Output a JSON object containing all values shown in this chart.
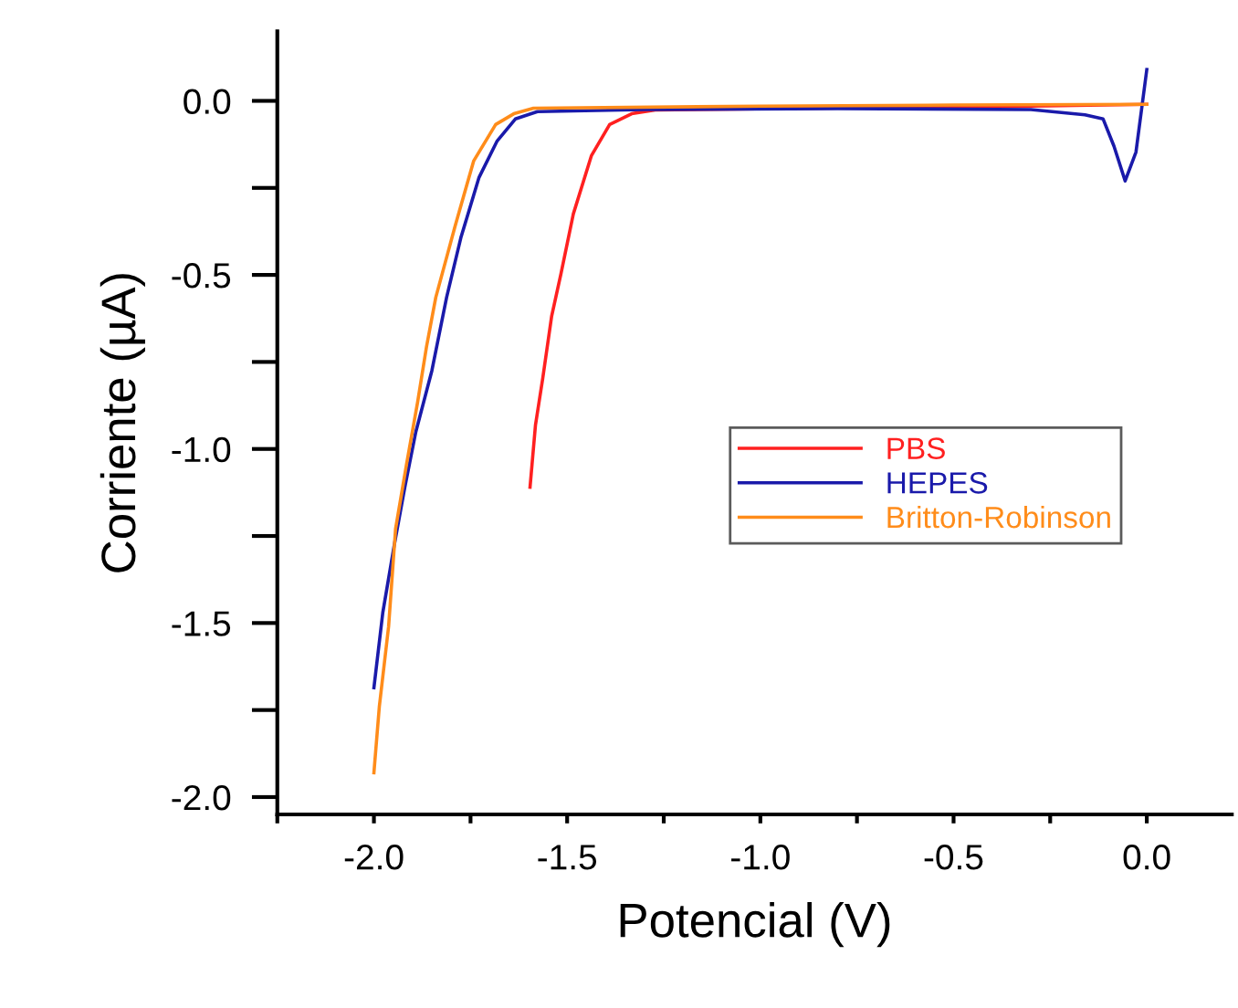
{
  "chart_data": {
    "type": "line",
    "xlabel": "Potencial (V)",
    "ylabel": "Corriente (µA)",
    "xlim": [
      -2.25,
      0.22
    ],
    "ylim": [
      -2.05,
      0.2
    ],
    "xticks": [
      {
        "value": -2.25,
        "label": null
      },
      {
        "value": -2,
        "label": "-2.0"
      },
      {
        "value": -1.75,
        "label": null
      },
      -1.5,
      {
        "value": -1.25,
        "label": null
      },
      {
        "value": -1,
        "label": "-1.0"
      },
      {
        "value": -0.75,
        "label": null
      },
      -0.5,
      {
        "value": -0.25,
        "label": null
      },
      {
        "value": 0,
        "label": "0.0"
      }
    ],
    "yticks": [
      {
        "value": -2,
        "label": "-2.0"
      },
      {
        "value": -1.75,
        "label": null
      },
      -1.5,
      {
        "value": -1.25,
        "label": null
      },
      {
        "value": -1,
        "label": "-1.0"
      },
      {
        "value": -0.75,
        "label": null
      },
      -0.5,
      {
        "value": -0.25,
        "label": null
      },
      {
        "value": 0,
        "label": "0.0"
      }
    ],
    "grid": false,
    "legend": "center right",
    "marker": "none",
    "line_style": "solid",
    "series": [
      {
        "name": "PBS",
        "color": "#ff2020",
        "x": [
          -1.596,
          -1.582,
          -1.563,
          -1.54,
          -1.516,
          -1.484,
          -1.437,
          -1.39,
          -1.333,
          -1.272,
          -0.8,
          -0.3,
          0.0
        ],
        "values": [
          -1.11,
          -0.932,
          -0.796,
          -0.618,
          -0.497,
          -0.325,
          -0.157,
          -0.068,
          -0.037,
          -0.026,
          -0.02,
          -0.015,
          -0.01
        ]
      },
      {
        "name": "HEPES",
        "color": "#1a1aaa",
        "x": [
          -2.0,
          -1.977,
          -1.948,
          -1.92,
          -1.892,
          -1.85,
          -1.812,
          -1.775,
          -1.728,
          -1.681,
          -1.634,
          -1.577,
          -1.3,
          -0.8,
          -0.3,
          -0.16,
          -0.113,
          -0.085,
          -0.056,
          -0.028,
          0.0
        ],
        "values": [
          -1.686,
          -1.47,
          -1.28,
          -1.11,
          -0.953,
          -0.775,
          -0.565,
          -0.393,
          -0.22,
          -0.115,
          -0.052,
          -0.031,
          -0.025,
          -0.022,
          -0.025,
          -0.04,
          -0.052,
          -0.13,
          -0.23,
          -0.147,
          0.09
        ]
      },
      {
        "name": "Britton-Robinson",
        "color": "#ff8c1a",
        "x": [
          -2.0,
          -1.986,
          -1.962,
          -1.944,
          -1.915,
          -1.887,
          -1.864,
          -1.84,
          -1.789,
          -1.742,
          -1.685,
          -1.638,
          -1.587,
          -1.0,
          -0.5,
          0.0
        ],
        "values": [
          -1.93,
          -1.74,
          -1.51,
          -1.23,
          -1.04,
          -0.866,
          -0.707,
          -0.565,
          -0.356,
          -0.173,
          -0.068,
          -0.037,
          -0.021,
          -0.015,
          -0.012,
          -0.01
        ]
      }
    ]
  }
}
